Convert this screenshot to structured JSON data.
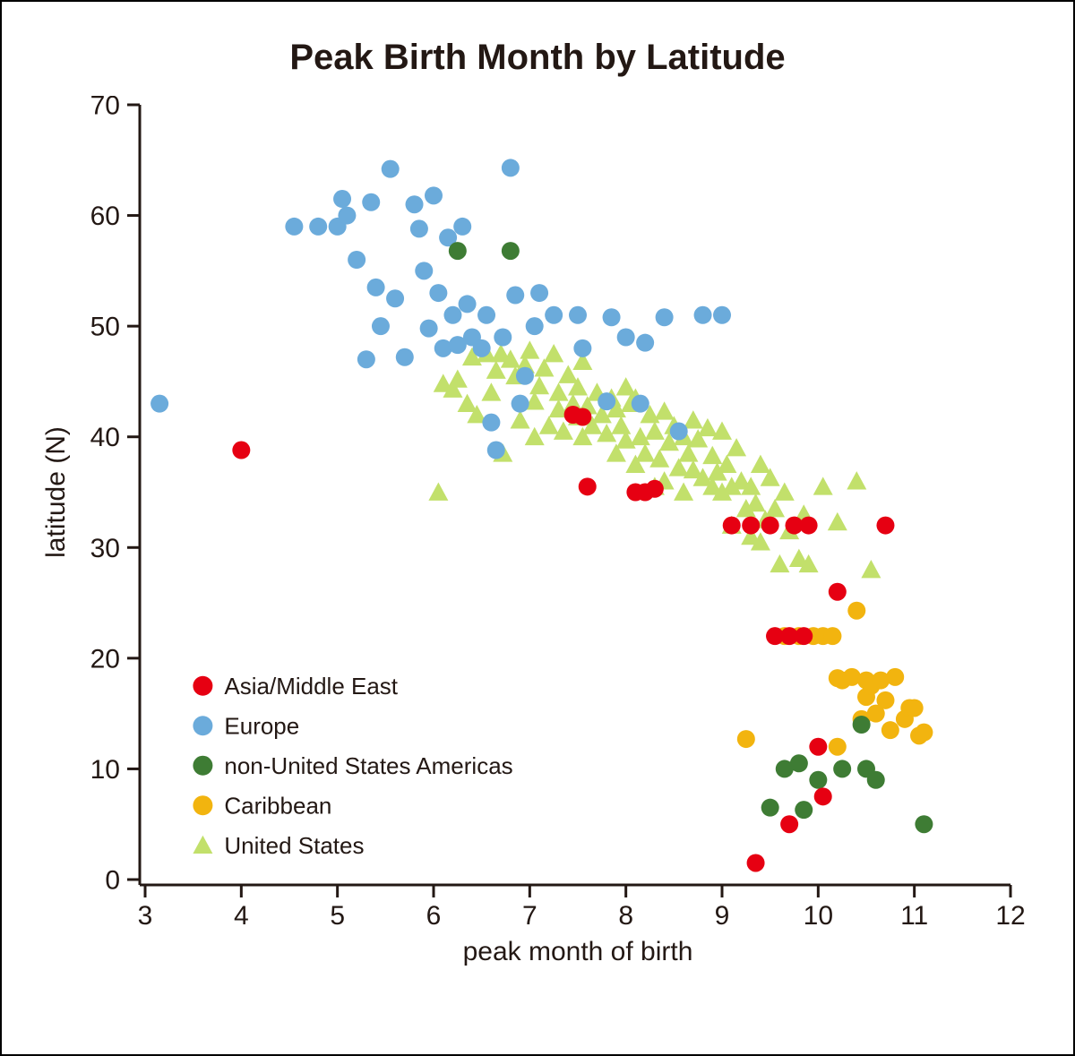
{
  "chart": {
    "type": "scatter",
    "title": "Peak Birth Month by Latitude",
    "title_fontsize": 40,
    "background_color": "#ffffff",
    "border_color": "#000000",
    "xlabel": "peak month of birth",
    "ylabel": "latitude (N)",
    "axis_label_fontsize": 30,
    "tick_fontsize": 30,
    "axis_color": "#231814",
    "axis_linewidth": 3,
    "xlim": [
      3,
      12
    ],
    "ylim": [
      0,
      70
    ],
    "xticks": [
      3,
      4,
      5,
      6,
      7,
      8,
      9,
      10,
      11,
      12
    ],
    "yticks": [
      0,
      10,
      20,
      30,
      40,
      50,
      60,
      70
    ],
    "grid": false,
    "marker_radius": 10,
    "triangle_half": 11,
    "legend": {
      "x": 3.6,
      "y_start": 17.5,
      "dy": 3.6,
      "fontsize": 26,
      "items": [
        {
          "label": "Asia/Middle East",
          "color": "#e60012",
          "shape": "circle"
        },
        {
          "label": "Europe",
          "color": "#6babdb",
          "shape": "circle"
        },
        {
          "label": "non-United States Americas",
          "color": "#3e7c34",
          "shape": "circle"
        },
        {
          "label": "Caribbean",
          "color": "#f2b40f",
          "shape": "circle"
        },
        {
          "label": "United States",
          "color": "#c2e06b",
          "shape": "triangle"
        }
      ]
    },
    "series": [
      {
        "name": "United States",
        "color": "#c2e06b",
        "shape": "triangle",
        "points": [
          [
            6.05,
            35.0
          ],
          [
            6.1,
            44.8
          ],
          [
            6.2,
            44.3
          ],
          [
            6.25,
            45.2
          ],
          [
            6.35,
            43.0
          ],
          [
            6.4,
            47.2
          ],
          [
            6.45,
            42.0
          ],
          [
            6.55,
            47.5
          ],
          [
            6.6,
            44.0
          ],
          [
            6.65,
            46.0
          ],
          [
            6.7,
            47.5
          ],
          [
            6.72,
            38.5
          ],
          [
            6.8,
            47.0
          ],
          [
            6.85,
            45.5
          ],
          [
            6.9,
            41.5
          ],
          [
            6.95,
            46.5
          ],
          [
            7.0,
            47.8
          ],
          [
            7.05,
            43.2
          ],
          [
            7.05,
            40.0
          ],
          [
            7.1,
            44.6
          ],
          [
            7.15,
            46.2
          ],
          [
            7.2,
            41.0
          ],
          [
            7.25,
            47.5
          ],
          [
            7.3,
            42.5
          ],
          [
            7.3,
            44.0
          ],
          [
            7.35,
            40.5
          ],
          [
            7.4,
            45.6
          ],
          [
            7.45,
            43.0
          ],
          [
            7.5,
            41.8
          ],
          [
            7.5,
            44.5
          ],
          [
            7.55,
            40.0
          ],
          [
            7.55,
            46.8
          ],
          [
            7.6,
            42.8
          ],
          [
            7.65,
            41.0
          ],
          [
            7.7,
            44.0
          ],
          [
            7.75,
            42.0
          ],
          [
            7.8,
            40.3
          ],
          [
            7.85,
            43.5
          ],
          [
            7.9,
            38.5
          ],
          [
            7.9,
            42.5
          ],
          [
            7.95,
            41.0
          ],
          [
            8.0,
            39.7
          ],
          [
            8.0,
            44.5
          ],
          [
            8.05,
            43.0
          ],
          [
            8.1,
            37.5
          ],
          [
            8.1,
            43.5
          ],
          [
            8.15,
            40.0
          ],
          [
            8.2,
            38.5
          ],
          [
            8.25,
            42.0
          ],
          [
            8.3,
            35.5
          ],
          [
            8.3,
            40.5
          ],
          [
            8.35,
            38.0
          ],
          [
            8.4,
            42.3
          ],
          [
            8.4,
            36.0
          ],
          [
            8.45,
            39.5
          ],
          [
            8.5,
            41.0
          ],
          [
            8.55,
            37.2
          ],
          [
            8.6,
            40.0
          ],
          [
            8.6,
            35.0
          ],
          [
            8.65,
            38.5
          ],
          [
            8.7,
            41.5
          ],
          [
            8.7,
            37.0
          ],
          [
            8.75,
            39.8
          ],
          [
            8.8,
            36.3
          ],
          [
            8.85,
            40.8
          ],
          [
            8.9,
            35.5
          ],
          [
            8.9,
            38.3
          ],
          [
            8.95,
            36.8
          ],
          [
            9.0,
            40.5
          ],
          [
            9.0,
            35.0
          ],
          [
            9.05,
            37.5
          ],
          [
            9.1,
            35.5
          ],
          [
            9.1,
            32.0
          ],
          [
            9.15,
            39.0
          ],
          [
            9.2,
            36.0
          ],
          [
            9.25,
            33.5
          ],
          [
            9.3,
            35.5
          ],
          [
            9.3,
            31.0
          ],
          [
            9.35,
            34.0
          ],
          [
            9.4,
            37.5
          ],
          [
            9.4,
            30.5
          ],
          [
            9.45,
            32.5
          ],
          [
            9.5,
            36.3
          ],
          [
            9.55,
            33.5
          ],
          [
            9.6,
            28.5
          ],
          [
            9.65,
            35.0
          ],
          [
            9.7,
            31.5
          ],
          [
            9.8,
            29.0
          ],
          [
            9.85,
            33.0
          ],
          [
            9.9,
            28.5
          ],
          [
            10.05,
            35.5
          ],
          [
            10.2,
            32.3
          ],
          [
            10.4,
            36.0
          ],
          [
            10.55,
            28.0
          ]
        ]
      },
      {
        "name": "Europe",
        "color": "#6babdb",
        "shape": "circle",
        "points": [
          [
            3.15,
            43.0
          ],
          [
            4.55,
            59.0
          ],
          [
            4.8,
            59.0
          ],
          [
            5.0,
            59.0
          ],
          [
            5.05,
            61.5
          ],
          [
            5.1,
            60.0
          ],
          [
            5.2,
            56.0
          ],
          [
            5.3,
            47.0
          ],
          [
            5.35,
            61.2
          ],
          [
            5.4,
            53.5
          ],
          [
            5.45,
            50.0
          ],
          [
            5.55,
            64.2
          ],
          [
            5.6,
            52.5
          ],
          [
            5.7,
            47.2
          ],
          [
            5.8,
            61.0
          ],
          [
            5.85,
            58.8
          ],
          [
            5.9,
            55.0
          ],
          [
            5.95,
            49.8
          ],
          [
            6.0,
            61.8
          ],
          [
            6.05,
            53.0
          ],
          [
            6.1,
            48.0
          ],
          [
            6.15,
            58.0
          ],
          [
            6.2,
            51.0
          ],
          [
            6.25,
            48.3
          ],
          [
            6.3,
            59.0
          ],
          [
            6.35,
            52.0
          ],
          [
            6.4,
            49.0
          ],
          [
            6.5,
            48.0
          ],
          [
            6.55,
            51.0
          ],
          [
            6.6,
            41.3
          ],
          [
            6.65,
            38.8
          ],
          [
            6.72,
            49.0
          ],
          [
            6.8,
            64.3
          ],
          [
            6.85,
            52.8
          ],
          [
            6.9,
            43.0
          ],
          [
            6.95,
            45.5
          ],
          [
            7.05,
            50.0
          ],
          [
            7.1,
            53.0
          ],
          [
            7.25,
            51.0
          ],
          [
            7.5,
            51.0
          ],
          [
            7.55,
            48.0
          ],
          [
            7.8,
            43.2
          ],
          [
            7.85,
            50.8
          ],
          [
            8.0,
            49.0
          ],
          [
            8.15,
            43.0
          ],
          [
            8.2,
            48.5
          ],
          [
            8.4,
            50.8
          ],
          [
            8.55,
            40.5
          ],
          [
            8.8,
            51.0
          ],
          [
            9.0,
            51.0
          ]
        ]
      },
      {
        "name": "Caribbean",
        "color": "#f2b40f",
        "shape": "circle",
        "points": [
          [
            9.25,
            12.7
          ],
          [
            9.65,
            22.0
          ],
          [
            9.8,
            22.0
          ],
          [
            9.95,
            22.0
          ],
          [
            10.05,
            22.0
          ],
          [
            10.15,
            22.0
          ],
          [
            10.2,
            18.2
          ],
          [
            10.2,
            12.0
          ],
          [
            10.25,
            18.0
          ],
          [
            10.35,
            18.3
          ],
          [
            10.4,
            24.3
          ],
          [
            10.45,
            14.5
          ],
          [
            10.5,
            16.5
          ],
          [
            10.5,
            18.0
          ],
          [
            10.55,
            17.5
          ],
          [
            10.6,
            15.0
          ],
          [
            10.65,
            18.0
          ],
          [
            10.7,
            16.2
          ],
          [
            10.75,
            13.5
          ],
          [
            10.8,
            18.3
          ],
          [
            10.9,
            14.5
          ],
          [
            10.95,
            15.5
          ],
          [
            11.0,
            15.5
          ],
          [
            11.05,
            13.0
          ],
          [
            11.1,
            13.3
          ]
        ]
      },
      {
        "name": "non-United States Americas",
        "color": "#3e7c34",
        "shape": "circle",
        "points": [
          [
            6.25,
            56.8
          ],
          [
            6.8,
            56.8
          ],
          [
            9.5,
            6.5
          ],
          [
            9.65,
            10.0
          ],
          [
            9.8,
            10.5
          ],
          [
            9.85,
            6.3
          ],
          [
            10.0,
            9.0
          ],
          [
            10.25,
            10.0
          ],
          [
            10.45,
            14.0
          ],
          [
            10.5,
            10.0
          ],
          [
            10.6,
            9.0
          ],
          [
            11.1,
            5.0
          ]
        ]
      },
      {
        "name": "Asia/Middle East",
        "color": "#e60012",
        "shape": "circle",
        "points": [
          [
            4.0,
            38.8
          ],
          [
            7.45,
            42.0
          ],
          [
            7.55,
            41.8
          ],
          [
            7.6,
            35.5
          ],
          [
            8.1,
            35.0
          ],
          [
            8.2,
            35.0
          ],
          [
            8.3,
            35.3
          ],
          [
            9.1,
            32.0
          ],
          [
            9.3,
            32.0
          ],
          [
            9.35,
            1.5
          ],
          [
            9.5,
            32.0
          ],
          [
            9.55,
            22.0
          ],
          [
            9.7,
            22.0
          ],
          [
            9.7,
            5.0
          ],
          [
            9.75,
            32.0
          ],
          [
            9.85,
            22.0
          ],
          [
            9.9,
            32.0
          ],
          [
            10.0,
            12.0
          ],
          [
            10.05,
            7.5
          ],
          [
            10.2,
            26.0
          ],
          [
            10.7,
            32.0
          ]
        ]
      }
    ]
  }
}
